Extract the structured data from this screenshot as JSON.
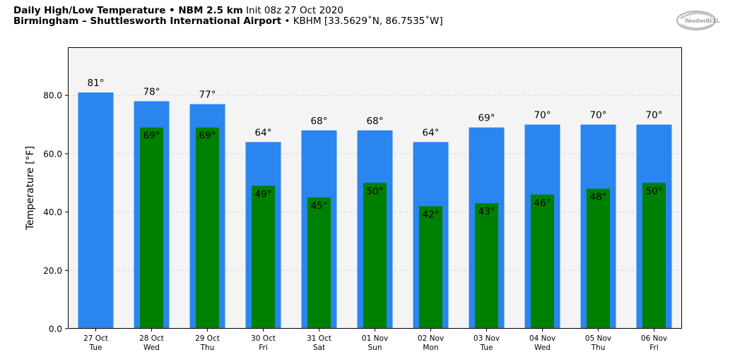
{
  "header": {
    "line1_bold": "Daily High/Low Temperature • NBM 2.5 km",
    "line1_normal": "Init 08z 27 Oct 2020",
    "line2_bold": "Birmingham – Shuttlesworth International Airport",
    "line2_normal": "• KBHM [33.5629˚N, 86.7535˚W]"
  },
  "logo": {
    "text": "WeatherBELL",
    "icon": "weatherbell-logo"
  },
  "colors": {
    "high": "#2b85ee",
    "low": "#008000",
    "plot_bg": "#f4f4f4",
    "grid": "#d0d0d0"
  },
  "chart_data": {
    "type": "bar",
    "title": "",
    "xlabel": "",
    "ylabel": "Temperature [°F]",
    "ylim": [
      0,
      96.5
    ],
    "yticks": [
      "0.0",
      "20.0",
      "40.0",
      "60.0",
      "80.0"
    ],
    "grid": true,
    "categories": [
      {
        "date": "27 Oct",
        "day": "Tue"
      },
      {
        "date": "28 Oct",
        "day": "Wed"
      },
      {
        "date": "29 Oct",
        "day": "Thu"
      },
      {
        "date": "30 Oct",
        "day": "Fri"
      },
      {
        "date": "31 Oct",
        "day": "Sat"
      },
      {
        "date": "01 Nov",
        "day": "Sun"
      },
      {
        "date": "02 Nov",
        "day": "Mon"
      },
      {
        "date": "03 Nov",
        "day": "Tue"
      },
      {
        "date": "04 Nov",
        "day": "Wed"
      },
      {
        "date": "05 Nov",
        "day": "Thu"
      },
      {
        "date": "06 Nov",
        "day": "Fri"
      }
    ],
    "series": [
      {
        "values": [
          81,
          78,
          77,
          64,
          68,
          68,
          64,
          69,
          70,
          70,
          70
        ],
        "labels": [
          "81°",
          "78°",
          "77°",
          "64°",
          "68°",
          "68°",
          "64°",
          "69°",
          "70°",
          "70°",
          "70°"
        ]
      },
      {
        "values": [
          null,
          69,
          69,
          49,
          45,
          50,
          42,
          43,
          46,
          48,
          50
        ],
        "labels": [
          "",
          "69°",
          "69°",
          "49°",
          "45°",
          "50°",
          "42°",
          "43°",
          "46°",
          "48°",
          "50°"
        ]
      }
    ]
  }
}
